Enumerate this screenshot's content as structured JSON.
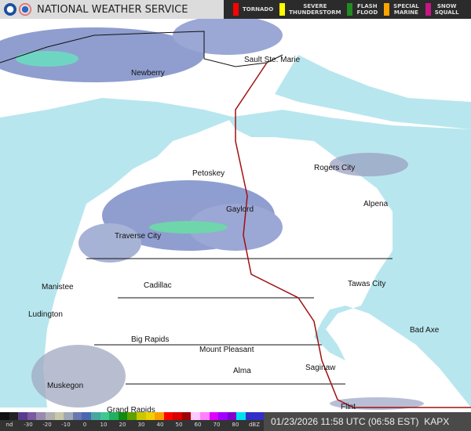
{
  "header": {
    "title": "NATIONAL WEATHER SERVICE",
    "logos": [
      "noaa-logo",
      "nws-logo"
    ]
  },
  "warnings": [
    {
      "label": "TORNADO",
      "color": "#ff0000"
    },
    {
      "label": "SEVERE\nTHUNDERSTORM",
      "color": "#ffff00"
    },
    {
      "label": "FLASH\nFLOOD",
      "color": "#228b22"
    },
    {
      "label": "SPECIAL\nMARINE",
      "color": "#ffa500"
    },
    {
      "label": "SNOW\nSQUALL",
      "color": "#c71585"
    }
  ],
  "cities": [
    "Sault Ste. Marie",
    "Newberry",
    "Petoskey",
    "Rogers City",
    "Gaylord",
    "Alpena",
    "Traverse City",
    "Manistee",
    "Cadillac",
    "Tawas City",
    "Ludington",
    "Big Rapids",
    "Mount Pleasant",
    "Bad Axe",
    "Alma",
    "Saginaw",
    "Muskegon",
    "Grand Rapids",
    "Flint"
  ],
  "legend": {
    "ticks": [
      "nd",
      "-30",
      "-20",
      "-10",
      "0",
      "10",
      "20",
      "30",
      "40",
      "50",
      "60",
      "70",
      "80",
      "dBZ"
    ],
    "colors": [
      "#111",
      "#222",
      "#5a3c8c",
      "#7a5aa0",
      "#9a8ab0",
      "#b0b0b0",
      "#c8c8a8",
      "#a0a8b8",
      "#6878b0",
      "#4a68b0",
      "#48a8a0",
      "#40c890",
      "#20b060",
      "#108a10",
      "#60a000",
      "#c8c800",
      "#f0d000",
      "#f8a000",
      "#ff0000",
      "#d80000",
      "#a00000",
      "#ffc8ff",
      "#ff80ff",
      "#e000ff",
      "#a000ff",
      "#8000d0",
      "#00e0f0",
      "#3030c8",
      "#3030c8"
    ]
  },
  "timestamp": "01/23/2026 11:58 UTC (06:58 EST)",
  "radar_site": "KAPX",
  "colors": {
    "water": "#b8e6ee",
    "land": "#ffffff",
    "radar": "#6a7ec0",
    "border": "#a01010"
  }
}
